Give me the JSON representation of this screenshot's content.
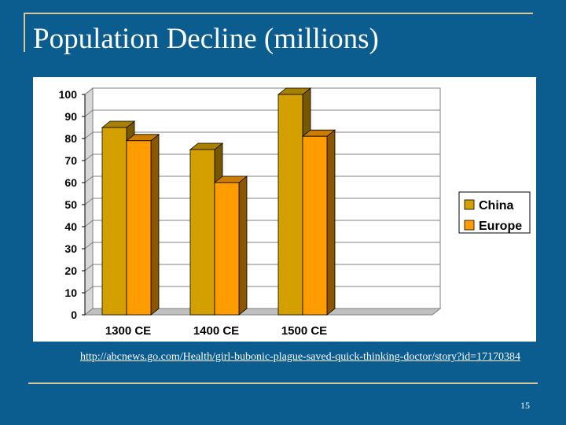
{
  "slide": {
    "title": "Population Decline (millions)",
    "source_url": "http://abcnews.go.com/Health/girl-bubonic-plague-saved-quick-thinking-doctor/story?id=17170384",
    "page_number": "15"
  },
  "colors": {
    "background": "#0b5c8f",
    "rule": "#d9c79a",
    "china": "#d4a000",
    "europe": "#ff9c00"
  },
  "chart_data": {
    "type": "bar",
    "title": "Population Decline (millions)",
    "xlabel": "",
    "ylabel": "",
    "categories": [
      "1300 CE",
      "1400 CE",
      "1500 CE"
    ],
    "series": [
      {
        "name": "China",
        "values": [
          85,
          75,
          100
        ]
      },
      {
        "name": "Europe",
        "values": [
          79,
          60,
          81
        ]
      }
    ],
    "ylim": [
      0,
      100
    ],
    "yticks": [
      0,
      10,
      20,
      30,
      40,
      50,
      60,
      70,
      80,
      90,
      100
    ],
    "grid": true,
    "legend": "right"
  }
}
